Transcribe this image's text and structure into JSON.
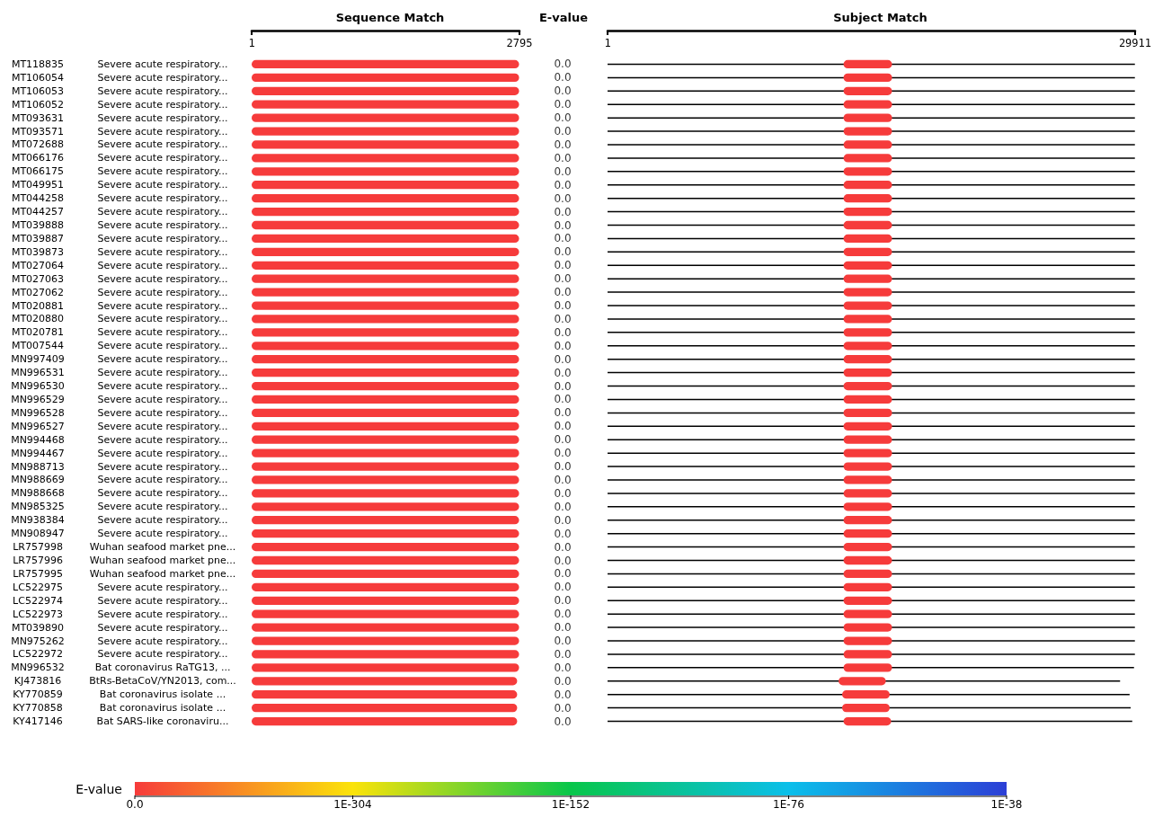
{
  "chart_data": [
    {
      "type": "bar",
      "orientation": "horizontal",
      "title": "Sequence Match",
      "color": "#f63b3b",
      "xlim": [
        1,
        2795
      ],
      "xticks": [
        1,
        2795
      ],
      "categories": [
        "MT118835 Severe acute respiratory...",
        "MT106054 Severe acute respiratory...",
        "MT106053 Severe acute respiratory...",
        "MT106052 Severe acute respiratory...",
        "MT093631 Severe acute respiratory...",
        "MT093571 Severe acute respiratory...",
        "MT072688 Severe acute respiratory...",
        "MT066176 Severe acute respiratory...",
        "MT066175 Severe acute respiratory...",
        "MT049951 Severe acute respiratory...",
        "MT044258 Severe acute respiratory...",
        "MT044257 Severe acute respiratory...",
        "MT039888 Severe acute respiratory...",
        "MT039887 Severe acute respiratory...",
        "MT039873 Severe acute respiratory...",
        "MT027064 Severe acute respiratory...",
        "MT027063 Severe acute respiratory...",
        "MT027062 Severe acute respiratory...",
        "MT020881 Severe acute respiratory...",
        "MT020880 Severe acute respiratory...",
        "MT020781 Severe acute respiratory...",
        "MT007544 Severe acute respiratory...",
        "MN997409 Severe acute respiratory...",
        "MN996531 Severe acute respiratory...",
        "MN996530 Severe acute respiratory...",
        "MN996529 Severe acute respiratory...",
        "MN996528 Severe acute respiratory...",
        "MN996527 Severe acute respiratory...",
        "MN994468 Severe acute respiratory...",
        "MN994467 Severe acute respiratory...",
        "MN988713 Severe acute respiratory...",
        "MN988669 Severe acute respiratory...",
        "MN988668 Severe acute respiratory...",
        "MN985325 Severe acute respiratory...",
        "MN938384 Severe acute respiratory...",
        "MN908947 Severe acute respiratory...",
        "LR757998 Wuhan seafood market pne...",
        "LR757996 Wuhan seafood market pne...",
        "LR757995 Wuhan seafood market pne...",
        "LC522975 Severe acute respiratory...",
        "LC522974 Severe acute respiratory...",
        "LC522973 Severe acute respiratory...",
        "MT039890 Severe acute respiratory...",
        "MN975262 Severe acute respiratory...",
        "LC522972 Severe acute respiratory...",
        "MN996532 Bat coronavirus RaTG13, ...",
        "KJ473816 BtRs-BetaCoV/YN2013, com...",
        "KY770859 Bat coronavirus isolate ...",
        "KY770858 Bat coronavirus isolate ...",
        "KY417146 Bat SARS-like coronaviru..."
      ],
      "base": [
        1,
        1,
        1,
        1,
        1,
        1,
        1,
        1,
        1,
        1,
        1,
        1,
        1,
        1,
        1,
        1,
        1,
        1,
        1,
        1,
        1,
        1,
        1,
        1,
        1,
        1,
        1,
        1,
        1,
        1,
        1,
        1,
        1,
        1,
        1,
        1,
        1,
        1,
        1,
        1,
        1,
        1,
        1,
        1,
        1,
        1,
        1,
        1,
        1,
        1
      ],
      "values": [
        2790,
        2790,
        2790,
        2790,
        2790,
        2790,
        2790,
        2790,
        2790,
        2790,
        2790,
        2790,
        2790,
        2790,
        2790,
        2790,
        2790,
        2790,
        2790,
        2790,
        2790,
        2790,
        2790,
        2790,
        2790,
        2790,
        2790,
        2790,
        2790,
        2790,
        2790,
        2790,
        2790,
        2790,
        2790,
        2790,
        2790,
        2790,
        2790,
        2790,
        2790,
        2790,
        2790,
        2790,
        2790,
        2790,
        2770,
        2770,
        2770,
        2770
      ]
    },
    {
      "type": "other",
      "title": "E-value",
      "clabel": "E-value",
      "annotations": [
        "0.0",
        "1E-304",
        "1E-152",
        "1E-76",
        "1E-38"
      ],
      "values": [
        0,
        0,
        0,
        0,
        0,
        0,
        0,
        0,
        0,
        0,
        0,
        0,
        0,
        0,
        0,
        0,
        0,
        0,
        0,
        0,
        0,
        0,
        0,
        0,
        0,
        0,
        0,
        0,
        0,
        0,
        0,
        0,
        0,
        0,
        0,
        0,
        0,
        0,
        0,
        0,
        0,
        0,
        0,
        0,
        0,
        0,
        0,
        0,
        0,
        0
      ],
      "value_labels": [
        "0.0",
        "0.0",
        "0.0",
        "0.0",
        "0.0",
        "0.0",
        "0.0",
        "0.0",
        "0.0",
        "0.0",
        "0.0",
        "0.0",
        "0.0",
        "0.0",
        "0.0",
        "0.0",
        "0.0",
        "0.0",
        "0.0",
        "0.0",
        "0.0",
        "0.0",
        "0.0",
        "0.0",
        "0.0",
        "0.0",
        "0.0",
        "0.0",
        "0.0",
        "0.0",
        "0.0",
        "0.0",
        "0.0",
        "0.0",
        "0.0",
        "0.0",
        "0.0",
        "0.0",
        "0.0",
        "0.0",
        "0.0",
        "0.0",
        "0.0",
        "0.0",
        "0.0",
        "0.0",
        "0.0",
        "0.0",
        "0.0",
        "0.0"
      ]
    },
    {
      "type": "bar",
      "orientation": "horizontal",
      "title": "Subject Match",
      "xlim": [
        1,
        29911
      ],
      "xticks": [
        1,
        29911
      ],
      "series": [
        {
          "color": "#000000",
          "base": [
            1,
            1,
            1,
            1,
            1,
            1,
            1,
            1,
            1,
            1,
            1,
            1,
            1,
            1,
            1,
            1,
            1,
            1,
            1,
            1,
            1,
            1,
            1,
            1,
            1,
            1,
            1,
            1,
            1,
            1,
            1,
            1,
            1,
            1,
            1,
            1,
            1,
            1,
            1,
            1,
            1,
            1,
            1,
            1,
            1,
            1,
            1,
            1,
            1,
            1
          ],
          "values": [
            29900,
            29900,
            29900,
            29900,
            29900,
            29900,
            29900,
            29900,
            29900,
            29900,
            29900,
            29900,
            29900,
            29900,
            29900,
            29900,
            29900,
            29900,
            29900,
            29900,
            29900,
            29900,
            29900,
            29900,
            29900,
            29900,
            29900,
            29900,
            29900,
            29900,
            29900,
            29900,
            29900,
            29900,
            29900,
            29900,
            29900,
            29900,
            29900,
            29900,
            29900,
            29900,
            29900,
            29900,
            29900,
            29850,
            29060,
            29600,
            29660,
            29750
          ]
        },
        {
          "color": "#f63b3b",
          "base": [
            13380,
            13380,
            13380,
            13380,
            13380,
            13380,
            13380,
            13380,
            13380,
            13380,
            13380,
            13380,
            13380,
            13380,
            13380,
            13380,
            13380,
            13380,
            13380,
            13380,
            13380,
            13380,
            13380,
            13380,
            13380,
            13380,
            13380,
            13380,
            13380,
            13380,
            13380,
            13380,
            13380,
            13380,
            13380,
            13380,
            13380,
            13380,
            13380,
            13380,
            13380,
            13380,
            13380,
            13380,
            13380,
            13380,
            13100,
            13300,
            13300,
            13380
          ],
          "values": [
            2750,
            2750,
            2750,
            2750,
            2750,
            2750,
            2750,
            2750,
            2750,
            2750,
            2750,
            2750,
            2750,
            2750,
            2750,
            2750,
            2750,
            2750,
            2750,
            2750,
            2750,
            2750,
            2750,
            2750,
            2750,
            2750,
            2750,
            2750,
            2750,
            2750,
            2750,
            2750,
            2750,
            2750,
            2750,
            2750,
            2750,
            2750,
            2750,
            2750,
            2750,
            2750,
            2750,
            2750,
            2750,
            2750,
            2680,
            2700,
            2700,
            2700
          ]
        }
      ]
    }
  ]
}
